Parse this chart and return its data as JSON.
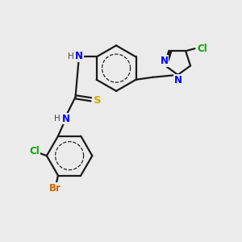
{
  "bg_color": "#ebebeb",
  "bond_color": "#1a1a1a",
  "bond_width": 1.6,
  "atom_colors": {
    "N": "#0000ff",
    "S": "#ccaa00",
    "Cl": "#00aa00",
    "Br": "#cc6600",
    "H": "#444444",
    "C": "#1a1a1a"
  },
  "font_size": 8.5
}
